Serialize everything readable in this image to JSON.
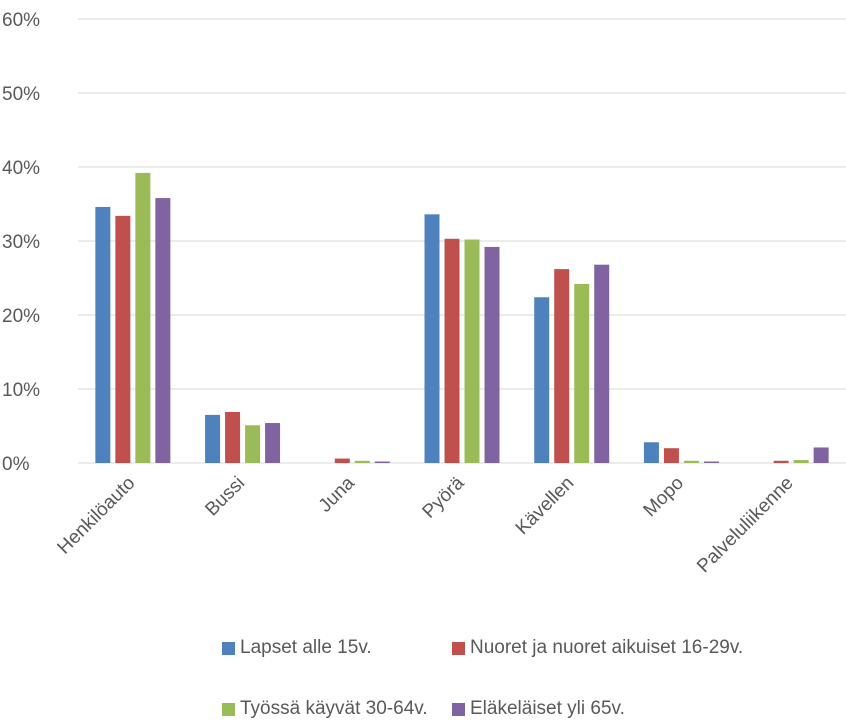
{
  "chart_data": {
    "type": "bar",
    "categories": [
      "Henkilöauto",
      "Bussi",
      "Juna",
      "Pyörä",
      "Kävellen",
      "Mopo",
      "Palveluliikenne"
    ],
    "series": [
      {
        "name": "Lapset alle 15v.",
        "color": "#4f81bd",
        "values": [
          34.6,
          6.5,
          0.0,
          33.6,
          22.4,
          2.8,
          0.0
        ]
      },
      {
        "name": "Nuoret ja nuoret aikuiset 16-29v.",
        "color": "#c0504d",
        "values": [
          33.4,
          6.9,
          0.6,
          30.3,
          26.2,
          2.0,
          0.3
        ]
      },
      {
        "name": "Työssä käyvät 30-64v.",
        "color": "#9bbb59",
        "values": [
          39.2,
          5.1,
          0.3,
          30.2,
          24.2,
          0.3,
          0.4
        ]
      },
      {
        "name": "Eläkeläiset yli 65v.",
        "color": "#8064a2",
        "values": [
          35.8,
          5.4,
          0.2,
          29.2,
          26.8,
          0.2,
          2.1
        ]
      }
    ],
    "yticks": [
      "0%",
      "10%",
      "20%",
      "30%",
      "40%",
      "50%",
      "60%"
    ],
    "ylim": [
      0,
      60
    ],
    "grid": true,
    "legend_position": "bottom",
    "gridline_color": "#d9d9d9"
  }
}
